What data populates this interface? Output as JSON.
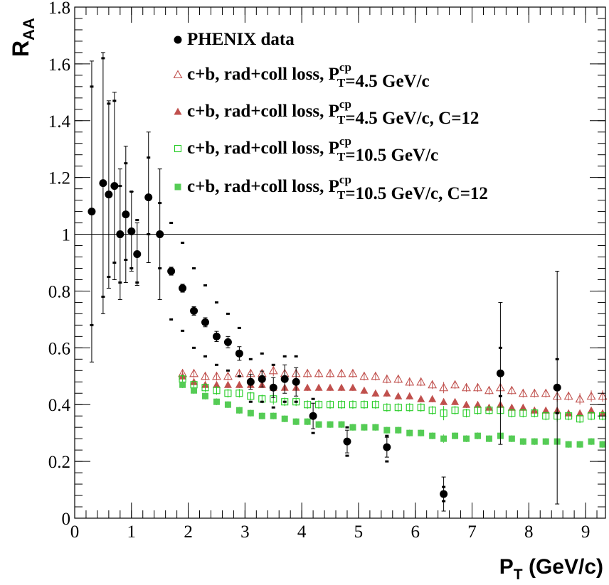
{
  "chart_data": {
    "type": "scatter",
    "title": "",
    "xlabel": "P_T (GeV/c)",
    "xlabel_main": "P",
    "xlabel_sub": "T",
    "xlabel_unit": " (GeV/c)",
    "ylabel_main": "R",
    "ylabel_sub": "AA",
    "xlim": [
      0,
      9.35
    ],
    "ylim": [
      0,
      1.8
    ],
    "x_ticks": [
      0,
      1,
      2,
      3,
      4,
      5,
      6,
      7,
      8,
      9
    ],
    "y_ticks": [
      0,
      0.2,
      0.4,
      0.6,
      0.8,
      1,
      1.2,
      1.4,
      1.6,
      1.8
    ],
    "x_tick_labels": [
      "0",
      "1",
      "2",
      "3",
      "4",
      "5",
      "6",
      "7",
      "8",
      "9"
    ],
    "y_tick_labels": [
      "0",
      "0.2",
      "0.4",
      "0.6",
      "0.8",
      "1",
      "1.2",
      "1.4",
      "1.6",
      "1.8"
    ],
    "reference_line": 1,
    "grid": false,
    "legend_position": "top-right",
    "legend": [
      {
        "marker": "filled-circle",
        "color": "#000000",
        "parts": [
          {
            "t": "PHENIX data"
          }
        ]
      },
      {
        "marker": "open-triangle",
        "color": "#c0504d",
        "parts": [
          {
            "t": "c+b, rad+coll loss, P"
          },
          {
            "sup": "cp",
            "sub": "T"
          },
          {
            "t": "=4.5 GeV/c"
          }
        ]
      },
      {
        "marker": "filled-triangle",
        "color": "#c0504d",
        "parts": [
          {
            "t": "c+b, rad+coll loss, P"
          },
          {
            "sup": "cp",
            "sub": "T"
          },
          {
            "t": "=4.5 GeV/c, C=12"
          }
        ]
      },
      {
        "marker": "open-square",
        "color": "#22cc22",
        "parts": [
          {
            "t": "c+b, rad+coll loss, P"
          },
          {
            "sup": "cp",
            "sub": "T"
          },
          {
            "t": "=10.5 GeV/c"
          }
        ]
      },
      {
        "marker": "filled-square",
        "color": "#55cc55",
        "parts": [
          {
            "t": "c+b, rad+coll loss, P"
          },
          {
            "sup": "cp",
            "sub": "T"
          },
          {
            "t": "=10.5 GeV/c, C=12"
          }
        ]
      }
    ],
    "series": [
      {
        "name": "PHENIX data",
        "marker": "filled-circle",
        "color": "#000000",
        "points": [
          {
            "x": 0.3,
            "y": 1.08,
            "err": 0.53,
            "sys_hi": 1.52,
            "sys_lo": 0.68
          },
          {
            "x": 0.5,
            "y": 1.18,
            "err": 0.46,
            "sys_hi": 1.62,
            "sys_lo": 0.78
          },
          {
            "x": 0.6,
            "y": 1.14,
            "err": 0.33,
            "sys_hi": 1.46,
            "sys_lo": 0.85
          },
          {
            "x": 0.7,
            "y": 1.17,
            "err": 0.33,
            "sys_hi": 1.47,
            "sys_lo": 0.9
          },
          {
            "x": 0.8,
            "y": 1.0,
            "err": 0.23,
            "sys_hi": 1.17,
            "sys_lo": 0.83
          },
          {
            "x": 0.9,
            "y": 1.07,
            "err": 0.24,
            "sys_hi": 1.25,
            "sys_lo": 0.91
          },
          {
            "x": 1.0,
            "y": 1.01,
            "err": 0.14,
            "sys_hi": 1.15,
            "sys_lo": 0.88
          },
          {
            "x": 1.1,
            "y": 0.93,
            "err": 0.11,
            "sys_hi": 1.05,
            "sys_lo": 0.83
          },
          {
            "x": 1.3,
            "y": 1.13,
            "err": 0.23,
            "sys_hi": 1.27,
            "sys_lo": 1.0
          },
          {
            "x": 1.5,
            "y": 1.0,
            "err": 0.23,
            "sys_hi": 1.11,
            "sys_lo": 0.88
          },
          {
            "x": 1.7,
            "y": 0.87,
            "err": 0.014,
            "sys_hi": 1.04,
            "sys_lo": 0.7
          },
          {
            "x": 1.9,
            "y": 0.81,
            "err": 0.014,
            "sys_hi": 0.97,
            "sys_lo": 0.66
          },
          {
            "x": 2.1,
            "y": 0.73,
            "err": 0.015,
            "sys_hi": 0.88,
            "sys_lo": 0.6
          },
          {
            "x": 2.3,
            "y": 0.69,
            "err": 0.016,
            "sys_hi": 0.82,
            "sys_lo": 0.57
          },
          {
            "x": 2.5,
            "y": 0.64,
            "err": 0.018,
            "sys_hi": 0.76,
            "sys_lo": 0.54
          },
          {
            "x": 2.7,
            "y": 0.62,
            "err": 0.02,
            "sys_hi": 0.72,
            "sys_lo": 0.52
          },
          {
            "x": 2.9,
            "y": 0.58,
            "err": 0.024,
            "sys_hi": 0.67,
            "sys_lo": 0.5
          },
          {
            "x": 3.1,
            "y": 0.48,
            "err": 0.026,
            "sys_hi": 0.56,
            "sys_lo": 0.41
          },
          {
            "x": 3.3,
            "y": 0.49,
            "err": 0.028,
            "sys_hi": 0.58,
            "sys_lo": 0.41
          },
          {
            "x": 3.5,
            "y": 0.46,
            "err": 0.035,
            "sys_hi": 0.54,
            "sys_lo": 0.39
          },
          {
            "x": 3.7,
            "y": 0.49,
            "err": 0.05,
            "sys_hi": 0.57,
            "sys_lo": 0.41
          },
          {
            "x": 3.9,
            "y": 0.48,
            "err": 0.05,
            "sys_hi": 0.57,
            "sys_lo": 0.41
          },
          {
            "x": 4.2,
            "y": 0.36,
            "err": 0.045,
            "sys_hi": 0.42,
            "sys_lo": 0.3
          },
          {
            "x": 4.8,
            "y": 0.27,
            "err": 0.04,
            "sys_hi": 0.32,
            "sys_lo": 0.22
          },
          {
            "x": 5.5,
            "y": 0.25,
            "err": 0.035,
            "sys_hi": 0.29,
            "sys_lo": 0.2
          },
          {
            "x": 6.5,
            "y": 0.085,
            "err": 0.06,
            "sys_hi": 0.11,
            "sys_lo": 0.06
          },
          {
            "x": 7.5,
            "y": 0.51,
            "err": 0.25,
            "sys_hi": 0.6,
            "sys_lo": 0.43
          },
          {
            "x": 8.5,
            "y": 0.46,
            "err": 0.41,
            "sys_hi": 0.56,
            "sys_lo": 0.37
          }
        ]
      },
      {
        "name": "c+b, rad+coll loss, P_T^cp=4.5 GeV/c",
        "marker": "open-triangle",
        "color": "#c0504d",
        "x": [
          1.9,
          2.1,
          2.3,
          2.5,
          2.7,
          2.9,
          3.1,
          3.3,
          3.5,
          3.7,
          3.9,
          4.1,
          4.3,
          4.5,
          4.7,
          4.9,
          5.1,
          5.3,
          5.5,
          5.7,
          5.9,
          6.1,
          6.3,
          6.5,
          6.7,
          6.9,
          7.1,
          7.3,
          7.5,
          7.7,
          7.9,
          8.1,
          8.3,
          8.5,
          8.7,
          8.9,
          9.1,
          9.3
        ],
        "y": [
          0.51,
          0.51,
          0.5,
          0.5,
          0.5,
          0.51,
          0.51,
          0.51,
          0.52,
          0.51,
          0.51,
          0.51,
          0.51,
          0.51,
          0.51,
          0.51,
          0.5,
          0.5,
          0.49,
          0.49,
          0.48,
          0.48,
          0.47,
          0.46,
          0.47,
          0.46,
          0.46,
          0.45,
          0.46,
          0.45,
          0.44,
          0.44,
          0.44,
          0.43,
          0.43,
          0.42,
          0.43,
          0.43
        ],
        "err": [
          0.015,
          0.015,
          0.015,
          0.015,
          0.015,
          0.015,
          0.015,
          0.015,
          0.02,
          0.015,
          0.015,
          0.015,
          0.015,
          0.015,
          0.015,
          0.015,
          0.015,
          0.015,
          0.015,
          0.015,
          0.015,
          0.015,
          0.015,
          0.02,
          0.015,
          0.015,
          0.015,
          0.015,
          0.015,
          0.015,
          0.015,
          0.015,
          0.015,
          0.02,
          0.015,
          0.02,
          0.02,
          0.02
        ]
      },
      {
        "name": "c+b, rad+coll loss, P_T^cp=4.5 GeV/c, C=12",
        "marker": "filled-triangle",
        "color": "#c0504d",
        "x": [
          1.9,
          2.1,
          2.3,
          2.5,
          2.7,
          2.9,
          3.1,
          3.3,
          3.5,
          3.7,
          3.9,
          4.1,
          4.3,
          4.5,
          4.7,
          4.9,
          5.1,
          5.3,
          5.5,
          5.7,
          5.9,
          6.1,
          6.3,
          6.5,
          6.7,
          6.9,
          7.1,
          7.3,
          7.5,
          7.7,
          7.9,
          8.1,
          8.3,
          8.5,
          8.7,
          8.9,
          9.1,
          9.3
        ],
        "y": [
          0.5,
          0.48,
          0.47,
          0.47,
          0.47,
          0.47,
          0.47,
          0.47,
          0.46,
          0.46,
          0.46,
          0.46,
          0.46,
          0.46,
          0.46,
          0.46,
          0.45,
          0.44,
          0.44,
          0.43,
          0.43,
          0.42,
          0.42,
          0.41,
          0.41,
          0.4,
          0.4,
          0.39,
          0.4,
          0.39,
          0.39,
          0.38,
          0.38,
          0.38,
          0.37,
          0.37,
          0.38,
          0.37
        ],
        "err": [
          0.012,
          0.012,
          0.012,
          0.012,
          0.012,
          0.012,
          0.012,
          0.012,
          0.012,
          0.012,
          0.012,
          0.012,
          0.012,
          0.012,
          0.012,
          0.012,
          0.012,
          0.012,
          0.012,
          0.012,
          0.012,
          0.012,
          0.012,
          0.012,
          0.012,
          0.012,
          0.012,
          0.012,
          0.012,
          0.012,
          0.012,
          0.012,
          0.012,
          0.012,
          0.012,
          0.012,
          0.012,
          0.012
        ]
      },
      {
        "name": "c+b, rad+coll loss, P_T^cp=10.5 GeV/c",
        "marker": "open-square",
        "color": "#22cc22",
        "x": [
          1.9,
          2.1,
          2.3,
          2.5,
          2.7,
          2.9,
          3.1,
          3.3,
          3.5,
          3.7,
          3.9,
          4.1,
          4.3,
          4.5,
          4.7,
          4.9,
          5.1,
          5.3,
          5.5,
          5.7,
          5.9,
          6.1,
          6.3,
          6.5,
          6.7,
          6.9,
          7.1,
          7.3,
          7.5,
          7.7,
          7.9,
          8.1,
          8.3,
          8.5,
          8.7,
          8.9,
          9.1,
          9.3
        ],
        "y": [
          0.49,
          0.47,
          0.46,
          0.45,
          0.44,
          0.44,
          0.43,
          0.42,
          0.42,
          0.41,
          0.41,
          0.4,
          0.4,
          0.4,
          0.4,
          0.4,
          0.4,
          0.4,
          0.39,
          0.39,
          0.39,
          0.39,
          0.38,
          0.37,
          0.38,
          0.37,
          0.38,
          0.38,
          0.38,
          0.37,
          0.37,
          0.37,
          0.36,
          0.36,
          0.36,
          0.35,
          0.36,
          0.36
        ],
        "err": [
          0.015,
          0.015,
          0.015,
          0.015,
          0.015,
          0.015,
          0.015,
          0.015,
          0.02,
          0.015,
          0.015,
          0.015,
          0.015,
          0.015,
          0.015,
          0.015,
          0.015,
          0.015,
          0.015,
          0.015,
          0.015,
          0.015,
          0.015,
          0.025,
          0.015,
          0.015,
          0.015,
          0.015,
          0.015,
          0.015,
          0.015,
          0.015,
          0.015,
          0.02,
          0.015,
          0.015,
          0.015,
          0.015
        ]
      },
      {
        "name": "c+b, rad+coll loss, P_T^cp=10.5 GeV/c, C=12",
        "marker": "filled-square",
        "color": "#55cc55",
        "x": [
          1.9,
          2.1,
          2.3,
          2.5,
          2.7,
          2.9,
          3.1,
          3.3,
          3.5,
          3.7,
          3.9,
          4.1,
          4.3,
          4.5,
          4.7,
          4.9,
          5.1,
          5.3,
          5.5,
          5.7,
          5.9,
          6.1,
          6.3,
          6.5,
          6.7,
          6.9,
          7.1,
          7.3,
          7.5,
          7.7,
          7.9,
          8.1,
          8.3,
          8.5,
          8.7,
          8.9,
          9.1,
          9.3
        ],
        "y": [
          0.47,
          0.45,
          0.43,
          0.41,
          0.4,
          0.38,
          0.37,
          0.36,
          0.36,
          0.35,
          0.34,
          0.34,
          0.33,
          0.33,
          0.33,
          0.32,
          0.32,
          0.32,
          0.31,
          0.31,
          0.3,
          0.3,
          0.29,
          0.28,
          0.29,
          0.28,
          0.29,
          0.28,
          0.29,
          0.28,
          0.27,
          0.27,
          0.27,
          0.27,
          0.26,
          0.26,
          0.27,
          0.26
        ],
        "err": [
          0.012,
          0.012,
          0.012,
          0.012,
          0.012,
          0.012,
          0.012,
          0.012,
          0.012,
          0.012,
          0.012,
          0.012,
          0.012,
          0.012,
          0.012,
          0.012,
          0.012,
          0.012,
          0.012,
          0.012,
          0.012,
          0.012,
          0.012,
          0.015,
          0.012,
          0.012,
          0.012,
          0.012,
          0.012,
          0.012,
          0.012,
          0.012,
          0.012,
          0.012,
          0.012,
          0.012,
          0.012,
          0.012
        ]
      }
    ]
  }
}
